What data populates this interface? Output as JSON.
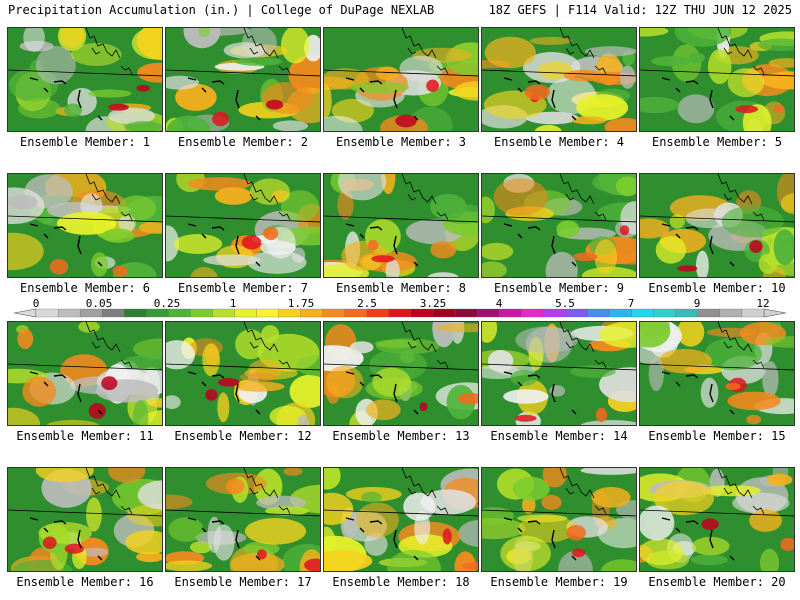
{
  "header": {
    "left": "Precipitation Accumulation (in.) | College of DuPage NEXLAB",
    "right": "18Z GEFS | F114 Valid: 12Z THU JUN 12 2025"
  },
  "member_label_prefix": "Ensemble Member: ",
  "members": [
    {
      "id": "1"
    },
    {
      "id": "2"
    },
    {
      "id": "3"
    },
    {
      "id": "4"
    },
    {
      "id": "5"
    },
    {
      "id": "6"
    },
    {
      "id": "7"
    },
    {
      "id": "8"
    },
    {
      "id": "9"
    },
    {
      "id": "10"
    },
    {
      "id": "11"
    },
    {
      "id": "12"
    },
    {
      "id": "13"
    },
    {
      "id": "14"
    },
    {
      "id": "15"
    },
    {
      "id": "16"
    },
    {
      "id": "17"
    },
    {
      "id": "18"
    },
    {
      "id": "19"
    },
    {
      "id": "20"
    }
  ],
  "colorbar": {
    "tick_labels": [
      "0",
      "0.05",
      "0.25",
      "1",
      "1.75",
      "2.5",
      "3.25",
      "4",
      "5.5",
      "7",
      "9",
      "12"
    ],
    "colors": [
      "#d9d9d9",
      "#bdbdbd",
      "#a0a0a0",
      "#7f7f7f",
      "#2e7d32",
      "#3a9a3a",
      "#4fb33a",
      "#7ccc2e",
      "#b5e02a",
      "#e6f22a",
      "#fff232",
      "#f5d21e",
      "#f5b01e",
      "#f58a1e",
      "#f56a1e",
      "#f23c1e",
      "#e0141e",
      "#c0001e",
      "#a0001e",
      "#8a0a3a",
      "#a01070",
      "#c81aa0",
      "#e628c8",
      "#b43cf0",
      "#7a5cf0",
      "#4a8cf0",
      "#2ab4f0",
      "#20d8e8",
      "#30d0c8",
      "#40b8b8",
      "#909090",
      "#b0b0b0",
      "#cfcfcf"
    ]
  }
}
